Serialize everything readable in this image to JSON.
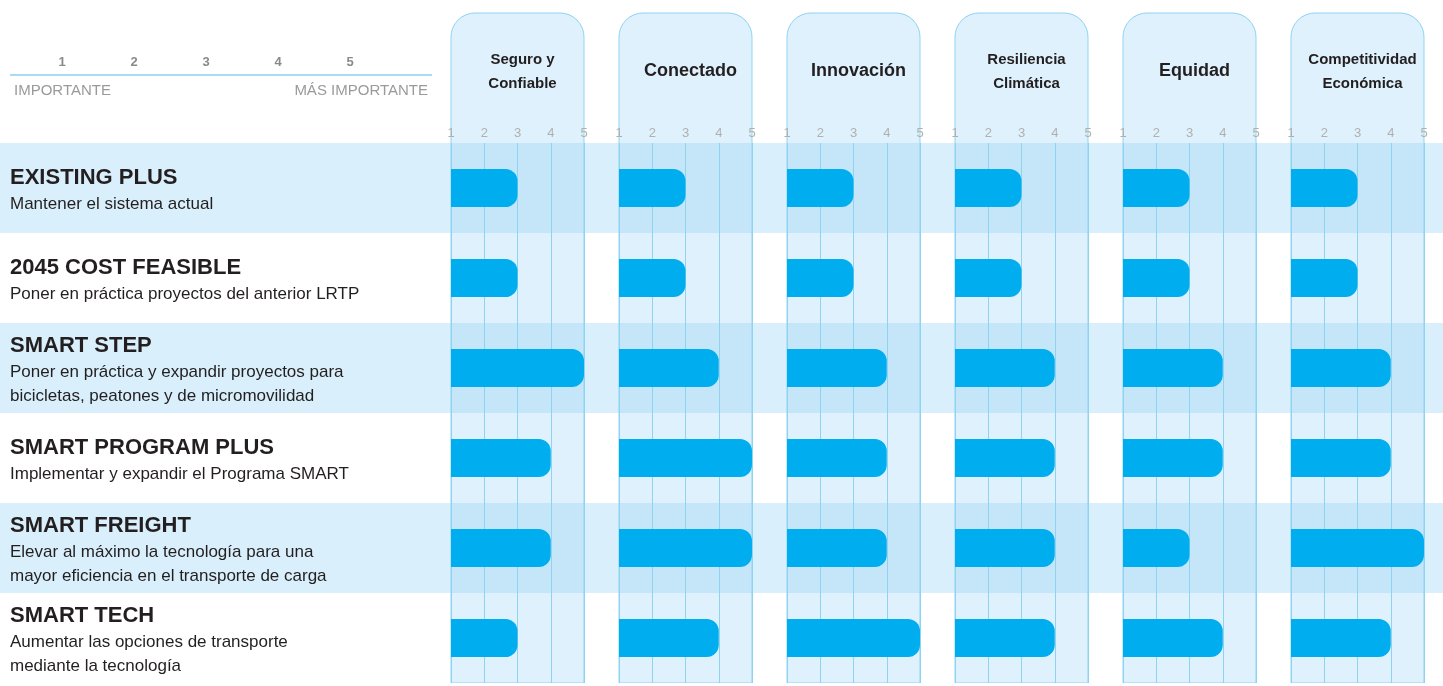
{
  "chart_data": [
    {
      "type": "bar",
      "orientation": "horizontal",
      "title": "Seguro y\nConfiable",
      "categories": [
        "EXISTING PLUS\nMantener el sistema actual",
        "2045 COST FEASIBLE\nPoner en práctica proyectos del anterior LRTP",
        "SMART STEP\nPoner en práctica y expandir proyectos para\nbicicletas, peatones y de micromovilidad",
        "SMART PROGRAM PLUS\nImplementar y expandir el Programa SMART",
        "SMART FREIGHT\nElevar al máximo la tecnología para una\nmayor eficiencia en el transporte de carga",
        "SMART TECH\nAumentar las opciones de transporte\nmediante la tecnología"
      ],
      "values": [
        3,
        3,
        5,
        4,
        4,
        3
      ],
      "color": "#00aeef",
      "xlim": [
        1,
        5
      ],
      "xticks": [
        1,
        2,
        3,
        4,
        5
      ],
      "grid": "x",
      "annotations": [
        "1",
        "2",
        "3",
        "4",
        "5",
        "IMPORTANTE",
        "MÁS IMPORTANTE"
      ]
    },
    {
      "type": "bar",
      "orientation": "horizontal",
      "title": "Conectado",
      "categories": [
        null,
        null,
        null,
        null,
        null,
        null
      ],
      "values": [
        3,
        3,
        4,
        5,
        5,
        4
      ],
      "color": "#00aeef",
      "xlim": [
        1,
        5
      ],
      "xticks": [
        1,
        2,
        3,
        4,
        5
      ],
      "grid": "x",
      "tick_labels": "x"
    },
    {
      "type": "bar",
      "orientation": "horizontal",
      "title": "Innovación",
      "categories": [
        null,
        null,
        null,
        null,
        null,
        null
      ],
      "values": [
        3,
        3,
        4,
        4,
        4,
        5
      ],
      "color": "#00aeef",
      "xlim": [
        1,
        5
      ],
      "xticks": [
        1,
        2,
        3,
        4,
        5
      ],
      "grid": "x",
      "tick_labels": "x"
    },
    {
      "type": "bar",
      "orientation": "horizontal",
      "title": "Resiliencia\nClimática",
      "categories": [
        null,
        null,
        null,
        null,
        null,
        null
      ],
      "values": [
        3,
        3,
        4,
        4,
        4,
        4
      ],
      "color": "#00aeef",
      "xlim": [
        1,
        5
      ],
      "xticks": [
        1,
        2,
        3,
        4,
        5
      ],
      "grid": "x",
      "tick_labels": "x"
    },
    {
      "type": "bar",
      "orientation": "horizontal",
      "title": "Equidad",
      "categories": [
        null,
        null,
        null,
        null,
        null,
        null
      ],
      "values": [
        3,
        3,
        4,
        4,
        3,
        4
      ],
      "color": "#00aeef",
      "xlim": [
        1,
        5
      ],
      "xticks": [
        1,
        2,
        3,
        4,
        5
      ],
      "grid": "x",
      "tick_labels": "x"
    },
    {
      "type": "bar",
      "orientation": "horizontal",
      "title": "Competitividad\nEconómica",
      "categories": [
        null,
        null,
        null,
        null,
        null,
        null
      ],
      "values": [
        3,
        3,
        4,
        4,
        5,
        4
      ],
      "color": "#00aeef",
      "xlim": [
        1,
        5
      ],
      "xticks": [
        1,
        2,
        3,
        4,
        5
      ],
      "grid": "x",
      "tick_labels": "x"
    }
  ]
}
